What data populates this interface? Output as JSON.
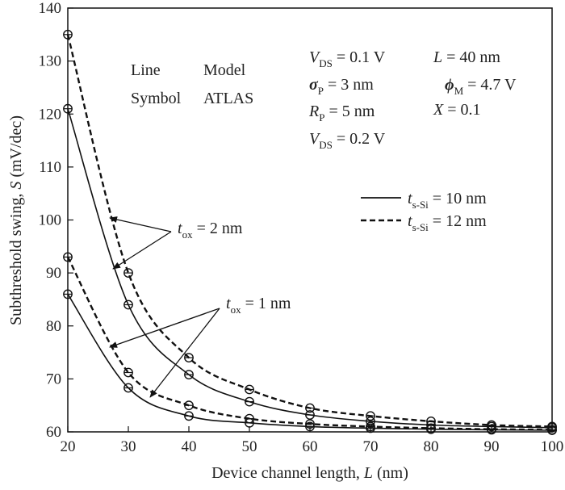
{
  "chart_data": {
    "type": "line",
    "xlabel": {
      "pre": "Device channel length, ",
      "var": "L",
      "post": " (nm)"
    },
    "ylabel": {
      "pre": "Subthreshold swing, ",
      "var": "S",
      "post": " (mV/dec)"
    },
    "xlim": [
      20,
      100
    ],
    "ylim": [
      60,
      140
    ],
    "xticks": [
      "20",
      "30",
      "40",
      "50",
      "60",
      "70",
      "80",
      "90",
      "100"
    ],
    "yticks": [
      "60",
      "70",
      "80",
      "90",
      "100",
      "110",
      "120",
      "130",
      "140"
    ],
    "x": [
      20,
      30,
      40,
      50,
      60,
      70,
      80,
      90,
      100
    ],
    "series": [
      {
        "name": "t_s-Si = 10 nm, t_ox = 2 nm",
        "line": "solid",
        "values": [
          121,
          84,
          70.8,
          65.7,
          63.2,
          62.0,
          61.3,
          61.0,
          60.8
        ]
      },
      {
        "name": "t_s-Si = 12 nm, t_ox = 2 nm",
        "line": "dashed",
        "values": [
          135,
          90,
          74,
          68,
          64.5,
          63,
          62,
          61.3,
          61
        ]
      },
      {
        "name": "t_s-Si = 10 nm, t_ox = 1 nm",
        "line": "solid",
        "values": [
          86,
          68.3,
          63,
          61.7,
          61,
          60.7,
          60.5,
          60.4,
          60.3
        ]
      },
      {
        "name": "t_s-Si = 12 nm, t_ox = 1 nm",
        "line": "dashed",
        "values": [
          93,
          71.2,
          65,
          62.5,
          61.5,
          61,
          60.7,
          60.5,
          60.4
        ]
      }
    ],
    "legend": {
      "placement": "right",
      "header": [
        {
          "left": "Line",
          "right": "Model"
        },
        {
          "left": "Symbol",
          "right": "ATLAS"
        }
      ],
      "entries": [
        {
          "style": "solid",
          "var": "t",
          "sub": "s-Si",
          "text": " = 10 nm"
        },
        {
          "style": "dashed",
          "var": "t",
          "sub": "s-Si",
          "text": " = 12 nm"
        }
      ]
    },
    "params": {
      "vds1": {
        "var": "V",
        "sub": "DS",
        "text": " = 0.1 V"
      },
      "sigma": {
        "var": "σ",
        "sub": "P",
        "text": " = 3 nm"
      },
      "rp": {
        "var": "R",
        "sub": "P",
        "text": " = 5 nm"
      },
      "vds2": {
        "var": "V",
        "sub": "DS",
        "text": " = 0.2 V"
      },
      "length": {
        "var": "L",
        "text": " = 40 nm"
      },
      "phi": {
        "var": "ϕ",
        "sub": "M",
        "text": " = 4.7 V"
      },
      "xfrac": {
        "var": "X",
        "text": " = 0.1"
      }
    },
    "annotations": {
      "tox2": {
        "var": "t",
        "sub": "ox",
        "text": " = 2 nm"
      },
      "tox1": {
        "var": "t",
        "sub": "ox",
        "text": " = 1 nm"
      }
    }
  }
}
